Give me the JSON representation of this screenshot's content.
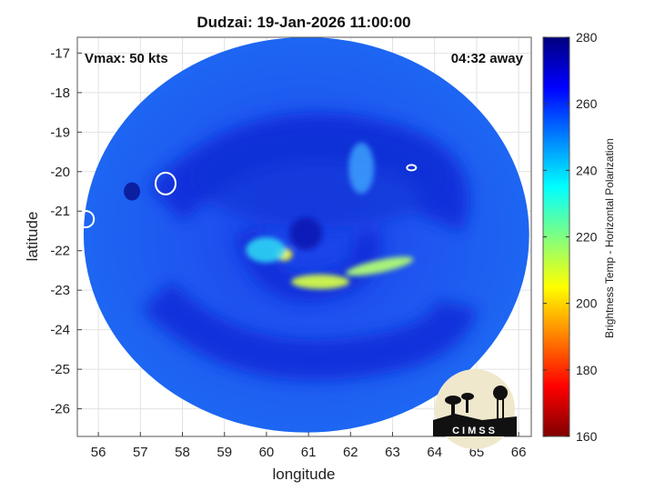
{
  "chart_data": {
    "type": "heatmap",
    "title": "Dudzai: 19-Jan-2026 11:00:00",
    "xlabel": "longitude",
    "ylabel": "latitude",
    "xlim": [
      55.5,
      66.3
    ],
    "ylim": [
      -26.7,
      -16.6
    ],
    "x_ticks": [
      56,
      57,
      58,
      59,
      60,
      61,
      62,
      63,
      64,
      65,
      66
    ],
    "y_ticks": [
      -17,
      -18,
      -19,
      -20,
      -21,
      -22,
      -23,
      -24,
      -25,
      -26
    ],
    "grid": true,
    "storm_center": {
      "lon": 60.85,
      "lat": -21.75
    },
    "swath_extent_deg": {
      "lon_radius": 5.3,
      "lat_radius": 5.0
    },
    "annotations": {
      "vmax": "Vmax: 50 kts",
      "time_offset": "04:32 away"
    },
    "colorbar": {
      "label": "Brightness Temp - Horizontal Polarization",
      "range": [
        160,
        280
      ],
      "ticks": [
        160,
        180,
        200,
        220,
        240,
        260,
        280
      ],
      "colormap": "jet-reversed",
      "colors_low_to_high": [
        "#7f0000",
        "#ff0000",
        "#ff8000",
        "#ffff00",
        "#80ff80",
        "#00ffff",
        "#0080ff",
        "#0000ff",
        "#00007f"
      ]
    },
    "typical_values": {
      "background": 250,
      "spiral_bands": 262,
      "eyewall_min": 205
    },
    "logo": "CIMSS"
  }
}
